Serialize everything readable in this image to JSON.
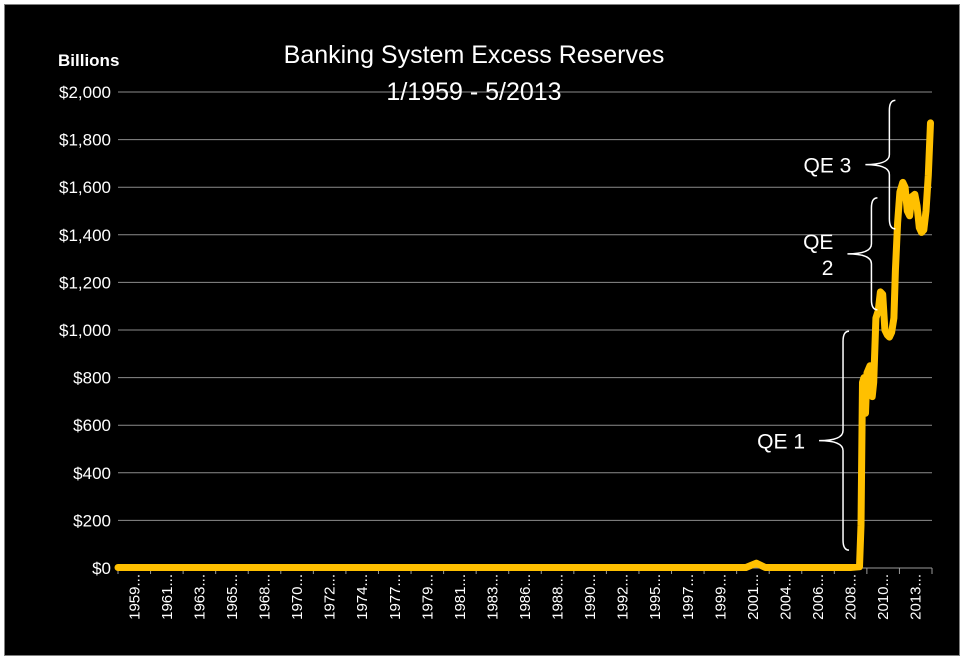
{
  "chart_data": {
    "type": "line",
    "title": "Banking System Excess Reserves",
    "subtitle": "1/1959 - 5/2013",
    "unit_label": "Billions",
    "xlabel": "",
    "ylabel": "",
    "ylim": [
      0,
      2000
    ],
    "grid": true,
    "yticks": [
      {
        "value": 0,
        "label": "$0"
      },
      {
        "value": 200,
        "label": "$200"
      },
      {
        "value": 400,
        "label": "$400"
      },
      {
        "value": 600,
        "label": "$600"
      },
      {
        "value": 800,
        "label": "$800"
      },
      {
        "value": 1000,
        "label": "$1,000"
      },
      {
        "value": 1200,
        "label": "$1,200"
      },
      {
        "value": 1400,
        "label": "$1,400"
      },
      {
        "value": 1600,
        "label": "$1,600"
      },
      {
        "value": 1800,
        "label": "$1,800"
      },
      {
        "value": 2000,
        "label": "$2,000"
      }
    ],
    "xticks": [
      "1959...",
      "1961...",
      "1963...",
      "1965...",
      "1968...",
      "1970...",
      "1972...",
      "1974...",
      "1977...",
      "1979...",
      "1981...",
      "1983...",
      "1986...",
      "1988...",
      "1990...",
      "1992...",
      "1995...",
      "1997...",
      "1999...",
      "2001...",
      "2004...",
      "2006...",
      "2008...",
      "2010...",
      "2013..."
    ],
    "series_color": "#ffc000",
    "series": [
      {
        "x": [
          1959.0,
          1970.0,
          1980.0,
          1990.0,
          2001.0,
          2001.7,
          2002.3,
          2008.0,
          2008.6,
          2008.7,
          2008.8,
          2008.9,
          2009.0,
          2009.1,
          2009.3,
          2009.45,
          2009.55,
          2009.7,
          2009.85,
          2010.0,
          2010.15,
          2010.3,
          2010.45,
          2010.6,
          2010.75,
          2010.9,
          2011.0,
          2011.15,
          2011.3,
          2011.5,
          2011.65,
          2011.8,
          2011.95,
          2012.1,
          2012.3,
          2012.45,
          2012.6,
          2012.75,
          2012.9,
          2013.05,
          2013.2,
          2013.35
        ],
        "values": [
          2,
          2,
          2,
          2,
          2,
          20,
          2,
          2,
          5,
          180,
          780,
          800,
          650,
          820,
          850,
          720,
          780,
          1050,
          1080,
          1160,
          1150,
          1000,
          980,
          970,
          990,
          1050,
          1250,
          1450,
          1580,
          1620,
          1600,
          1500,
          1480,
          1560,
          1570,
          1520,
          1430,
          1410,
          1420,
          1500,
          1650,
          1870
        ]
      }
    ],
    "annotations": [
      {
        "text": [
          "QE 3"
        ],
        "y_from": 1425,
        "y_to": 1965,
        "x_year": 2011.0
      },
      {
        "text": [
          "QE",
          "2"
        ],
        "y_from": 1085,
        "y_to": 1555,
        "x_year": 2009.8
      },
      {
        "text": [
          "QE 1"
        ],
        "y_from": 75,
        "y_to": 995,
        "x_year": 2007.9
      }
    ]
  }
}
